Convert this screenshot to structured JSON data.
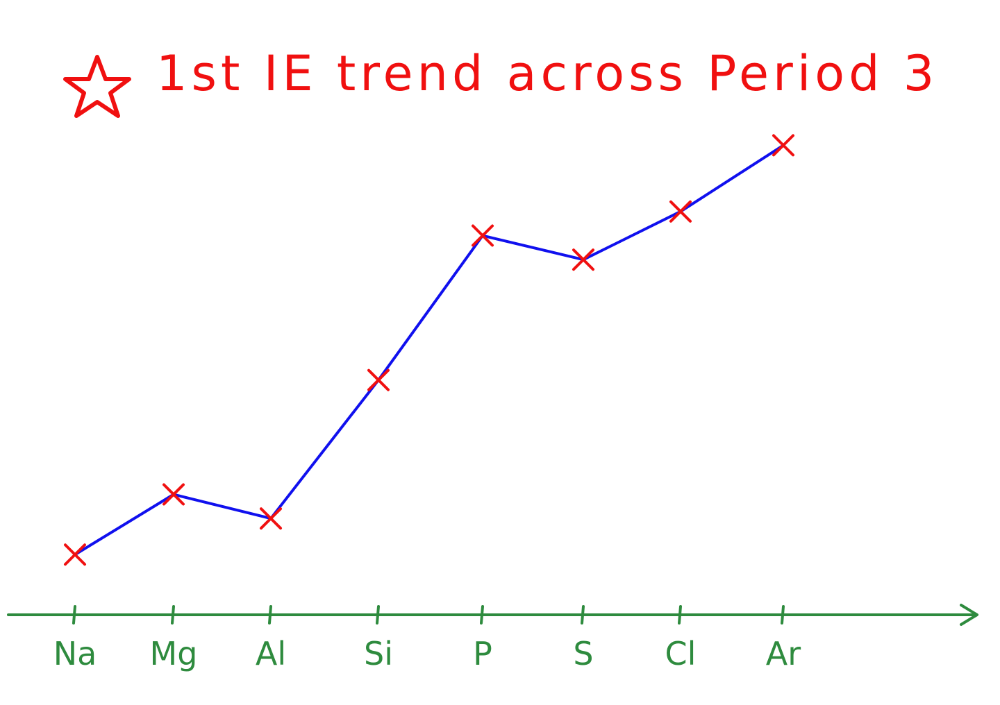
{
  "chart_data": {
    "type": "line",
    "title": "1st IE trend across Period 3",
    "categories": [
      "Na",
      "Mg",
      "Al",
      "Si",
      "P",
      "S",
      "Cl",
      "Ar"
    ],
    "values": [
      1,
      2,
      1.6,
      3.9,
      6.3,
      5.9,
      6.7,
      7.8
    ],
    "xlabel": "",
    "ylabel": "",
    "ylim": [
      0,
      8.6
    ],
    "grid": false,
    "legend": "none",
    "marker": "x",
    "colors": {
      "line": "#1010ee",
      "markers": "#f01010",
      "axis": "#2e8b3e",
      "title": "#f01010"
    }
  },
  "icons": {
    "title_mark": "star-icon"
  }
}
